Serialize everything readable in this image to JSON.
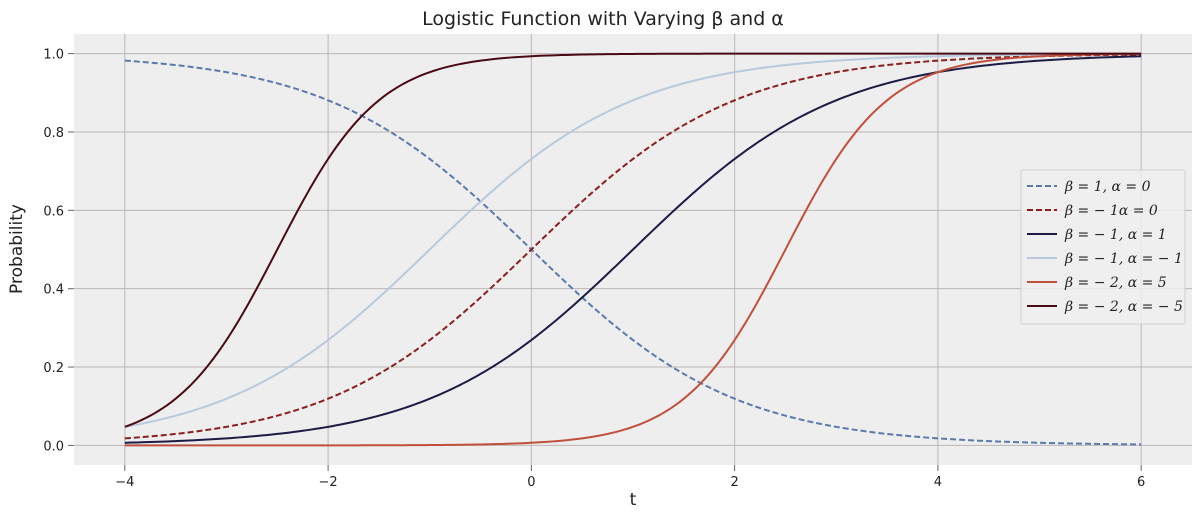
{
  "chart_data": {
    "type": "line",
    "title": "Logistic Function with Varying β and α",
    "xlabel": "t",
    "ylabel": "Probability",
    "xlim": [
      -4.5,
      6.5
    ],
    "ylim": [
      -0.05,
      1.05
    ],
    "xticks": [
      -4,
      -2,
      0,
      2,
      4,
      6
    ],
    "xtick_labels": [
      "−4",
      "−2",
      "0",
      "2",
      "4",
      "6"
    ],
    "yticks": [
      0.0,
      0.2,
      0.4,
      0.6,
      0.8,
      1.0
    ],
    "ytick_labels": [
      "0.0",
      "0.2",
      "0.4",
      "0.6",
      "0.8",
      "1.0"
    ],
    "grid": true,
    "legend_position": "center-right",
    "x_range": [
      -4,
      6
    ],
    "series": [
      {
        "name": "β = 1, α = 0",
        "beta": 1,
        "alpha": 0,
        "color": "#5b7aab",
        "dash": "dashed"
      },
      {
        "name": "β = − 1α = 0",
        "beta": -1,
        "alpha": 0,
        "color": "#8a1f1f",
        "dash": "dashed"
      },
      {
        "name": "β = − 1, α = 1",
        "beta": -1,
        "alpha": 1,
        "color": "#1b1b45",
        "dash": "solid"
      },
      {
        "name": "β = − 1, α = − 1",
        "beta": -1,
        "alpha": -1,
        "color": "#b8c9dc",
        "dash": "solid"
      },
      {
        "name": "β = − 2, α = 5",
        "beta": -2,
        "alpha": 5,
        "color": "#c0503c",
        "dash": "solid"
      },
      {
        "name": "β = − 2, α = − 5",
        "beta": -2,
        "alpha": -5,
        "color": "#4a0a14",
        "dash": "solid"
      }
    ]
  }
}
